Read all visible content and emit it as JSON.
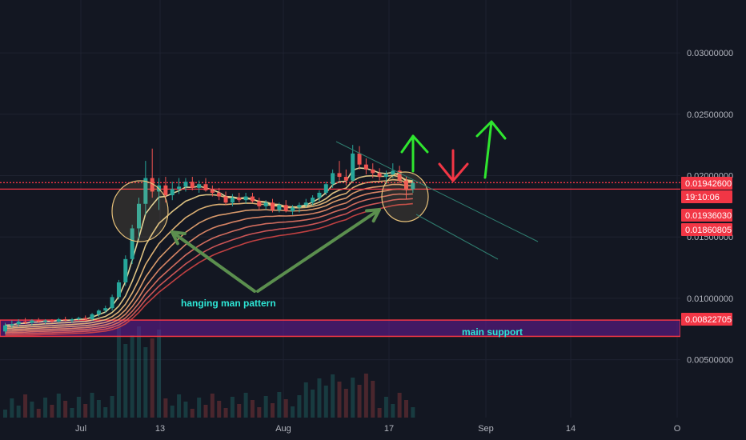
{
  "chart_data": {
    "type": "candlestick",
    "y_axis": {
      "ticks": [
        {
          "value": 0.03,
          "label": "0.03000000"
        },
        {
          "value": 0.025,
          "label": "0.02500000"
        },
        {
          "value": 0.02,
          "label": "0.02000000"
        },
        {
          "value": 0.015,
          "label": "0.01500000"
        },
        {
          "value": 0.01,
          "label": "0.01000000"
        },
        {
          "value": 0.005,
          "label": "0.00500000"
        }
      ]
    },
    "x_axis": {
      "ticks": [
        "Jul",
        "13",
        "Aug",
        "17",
        "Sep",
        "14",
        "O"
      ]
    },
    "price_tags": [
      {
        "label": "0.01942600",
        "value": 0.019426,
        "color": "#f23645"
      },
      {
        "label": "19:10:06",
        "value": 0.0187,
        "color": "#f23645"
      },
      {
        "label": "0.01936030",
        "value": 0.01936,
        "color": "#f23645"
      },
      {
        "label": "0.01860805",
        "value": 0.018608,
        "color": "#f23645"
      },
      {
        "label": "0.00822705",
        "value": 0.008227,
        "color": "#f23645"
      }
    ],
    "horizontal_lines": [
      {
        "value": 0.019426,
        "style": "dotted",
        "color": "#f23645"
      },
      {
        "value": 0.0189,
        "style": "solid",
        "color": "#f23645"
      }
    ],
    "support_zone": {
      "top": 0.008227,
      "bottom": 0.0069,
      "color": "#6a1b9a"
    },
    "annotations": {
      "hanging_man": "hanging man pattern",
      "main_support": "main support"
    },
    "candles": [
      [
        0.0073,
        0.008,
        0.0071,
        0.0078
      ],
      [
        0.0078,
        0.0082,
        0.0076,
        0.0079
      ],
      [
        0.0079,
        0.0083,
        0.0077,
        0.0081
      ],
      [
        0.0081,
        0.0084,
        0.0079,
        0.008
      ],
      [
        0.008,
        0.0083,
        0.0078,
        0.0082
      ],
      [
        0.0082,
        0.0084,
        0.008,
        0.0081
      ],
      [
        0.0081,
        0.0083,
        0.0079,
        0.0082
      ],
      [
        0.0082,
        0.0083,
        0.008,
        0.0081
      ],
      [
        0.0081,
        0.0084,
        0.008,
        0.0083
      ],
      [
        0.0083,
        0.0085,
        0.0081,
        0.0082
      ],
      [
        0.0082,
        0.0084,
        0.008,
        0.0083
      ],
      [
        0.0083,
        0.0085,
        0.0082,
        0.0084
      ],
      [
        0.0084,
        0.0086,
        0.0082,
        0.0083
      ],
      [
        0.0083,
        0.0088,
        0.0082,
        0.0087
      ],
      [
        0.0087,
        0.0091,
        0.0085,
        0.009
      ],
      [
        0.009,
        0.0094,
        0.0088,
        0.0092
      ],
      [
        0.0092,
        0.0103,
        0.009,
        0.0101
      ],
      [
        0.0101,
        0.0115,
        0.0099,
        0.0113
      ],
      [
        0.0113,
        0.0135,
        0.011,
        0.0132
      ],
      [
        0.0132,
        0.016,
        0.0128,
        0.0157
      ],
      [
        0.0157,
        0.0182,
        0.0148,
        0.0177
      ],
      [
        0.0177,
        0.0212,
        0.0168,
        0.0198
      ],
      [
        0.0198,
        0.0222,
        0.0182,
        0.0187
      ],
      [
        0.0187,
        0.0198,
        0.0172,
        0.0192
      ],
      [
        0.0192,
        0.0199,
        0.0178,
        0.0184
      ],
      [
        0.0184,
        0.0195,
        0.018,
        0.0189
      ],
      [
        0.0189,
        0.0198,
        0.0185,
        0.0191
      ],
      [
        0.0191,
        0.0198,
        0.0187,
        0.0195
      ],
      [
        0.0195,
        0.0199,
        0.0188,
        0.019
      ],
      [
        0.019,
        0.0196,
        0.0186,
        0.0193
      ],
      [
        0.0193,
        0.0198,
        0.0187,
        0.0188
      ],
      [
        0.0188,
        0.0192,
        0.0183,
        0.0186
      ],
      [
        0.0186,
        0.019,
        0.018,
        0.0183
      ],
      [
        0.0183,
        0.0187,
        0.0176,
        0.0178
      ],
      [
        0.0178,
        0.0185,
        0.0175,
        0.0182
      ],
      [
        0.0182,
        0.0186,
        0.0178,
        0.018
      ],
      [
        0.018,
        0.0186,
        0.0177,
        0.0183
      ],
      [
        0.0183,
        0.0186,
        0.0178,
        0.0179
      ],
      [
        0.0179,
        0.0182,
        0.0172,
        0.0175
      ],
      [
        0.0175,
        0.018,
        0.0172,
        0.0178
      ],
      [
        0.0178,
        0.0181,
        0.017,
        0.0172
      ],
      [
        0.0172,
        0.0178,
        0.017,
        0.0176
      ],
      [
        0.0176,
        0.018,
        0.017,
        0.0171
      ],
      [
        0.0171,
        0.0176,
        0.0168,
        0.0174
      ],
      [
        0.0174,
        0.0178,
        0.017,
        0.0176
      ],
      [
        0.0176,
        0.0181,
        0.0174,
        0.0178
      ],
      [
        0.0178,
        0.0184,
        0.0176,
        0.0182
      ],
      [
        0.0182,
        0.0188,
        0.0179,
        0.0186
      ],
      [
        0.0186,
        0.0195,
        0.0184,
        0.0193
      ],
      [
        0.0193,
        0.0205,
        0.019,
        0.0202
      ],
      [
        0.0202,
        0.0212,
        0.0196,
        0.0199
      ],
      [
        0.0199,
        0.0205,
        0.0192,
        0.0196
      ],
      [
        0.0196,
        0.0225,
        0.0195,
        0.0218
      ],
      [
        0.0218,
        0.0224,
        0.0205,
        0.0209
      ],
      [
        0.0209,
        0.0214,
        0.0201,
        0.0205
      ],
      [
        0.0205,
        0.021,
        0.0198,
        0.0202
      ],
      [
        0.0202,
        0.0206,
        0.0196,
        0.0199
      ],
      [
        0.0199,
        0.0204,
        0.0193,
        0.0201
      ],
      [
        0.0201,
        0.021,
        0.0198,
        0.0204
      ],
      [
        0.0204,
        0.0208,
        0.0194,
        0.0196
      ],
      [
        0.0196,
        0.0199,
        0.0181,
        0.0189
      ],
      [
        0.0189,
        0.0196,
        0.0186,
        0.0194
      ]
    ],
    "volume_bars": 62
  }
}
